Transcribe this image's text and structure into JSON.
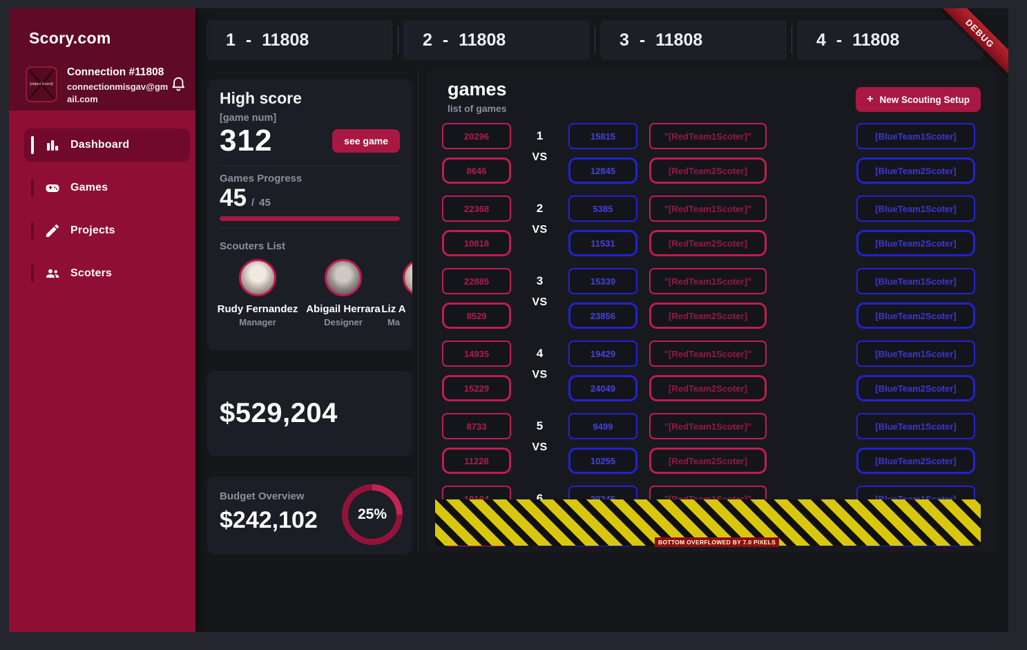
{
  "app": {
    "brand": "Scory.com",
    "connection": {
      "title": "Connection #11808",
      "email": "connectionmisgav@gmail.com",
      "avatar_alt": "[object Event]"
    },
    "debug_banner": "DEBUG"
  },
  "sidebar": {
    "items": [
      {
        "label": "Dashboard",
        "icon": "bar-chart-icon",
        "active": true
      },
      {
        "label": "Games",
        "icon": "gamepad-icon",
        "active": false
      },
      {
        "label": "Projects",
        "icon": "pencil-icon",
        "active": false
      },
      {
        "label": "Scoters",
        "icon": "people-icon",
        "active": false
      }
    ]
  },
  "tabs": [
    {
      "label": "1 - 11808"
    },
    {
      "label": "2 - 11808"
    },
    {
      "label": "3 - 11808"
    },
    {
      "label": "4 - 11808"
    }
  ],
  "high_score": {
    "title": "High score",
    "subtitle": "[game num]",
    "value": "312",
    "see_game_label": "see game"
  },
  "games_progress": {
    "title": "Games Progress",
    "current": "45",
    "separator": "/",
    "total": "45",
    "percent": 100
  },
  "scouters": {
    "title": "Scouters List",
    "members": [
      {
        "name": "Rudy Fernandez",
        "role": "Manager"
      },
      {
        "name": "Abigail Herrara",
        "role": "Designer"
      },
      {
        "name": "Liz A",
        "role": "Ma"
      }
    ]
  },
  "revenue": {
    "value": "$529,204"
  },
  "budget": {
    "title": "Budget Overview",
    "value": "$242,102",
    "percent_label": "25%"
  },
  "games_panel": {
    "title": "games",
    "subtitle": "list of games",
    "plus": "+",
    "new_button_label": "New Scouting Setup",
    "vs_label": "VS",
    "red_team1_label": "\"[RedTeam1Scoter]\"",
    "red_team2_label": "[RedTeam2Scoter]",
    "blue_team1_label": "[BlueTeam1Scoter]",
    "blue_team2_label": "[BlueTeam2Scoter]",
    "rows": [
      {
        "num": "1",
        "red1": "20296",
        "red2": "8646",
        "blue1": "15815",
        "blue2": "12845"
      },
      {
        "num": "2",
        "red1": "22368",
        "red2": "10818",
        "blue1": "5385",
        "blue2": "11531"
      },
      {
        "num": "3",
        "red1": "22885",
        "red2": "8529",
        "blue1": "15339",
        "blue2": "23856"
      },
      {
        "num": "4",
        "red1": "14935",
        "red2": "15229",
        "blue1": "19429",
        "blue2": "24049"
      },
      {
        "num": "5",
        "red1": "8733",
        "red2": "11228",
        "blue1": "9499",
        "blue2": "10255"
      },
      {
        "num": "6",
        "red1": "10104",
        "red2": "",
        "blue1": "20245",
        "blue2": ""
      }
    ]
  },
  "overflow_warning": "BOTTOM OVERFLOWED BY 7.0 PIXELS",
  "colors": {
    "accent_crimson": "#a81843",
    "sidebar_crimson": "#8e0f33",
    "sidebar_header": "#5f0a26",
    "red_border": "#c11d4f",
    "blue_border": "#2322cf",
    "hazard_yellow": "#d9c70e",
    "card_bg": "#1b1e24",
    "app_bg": "#15171b"
  }
}
